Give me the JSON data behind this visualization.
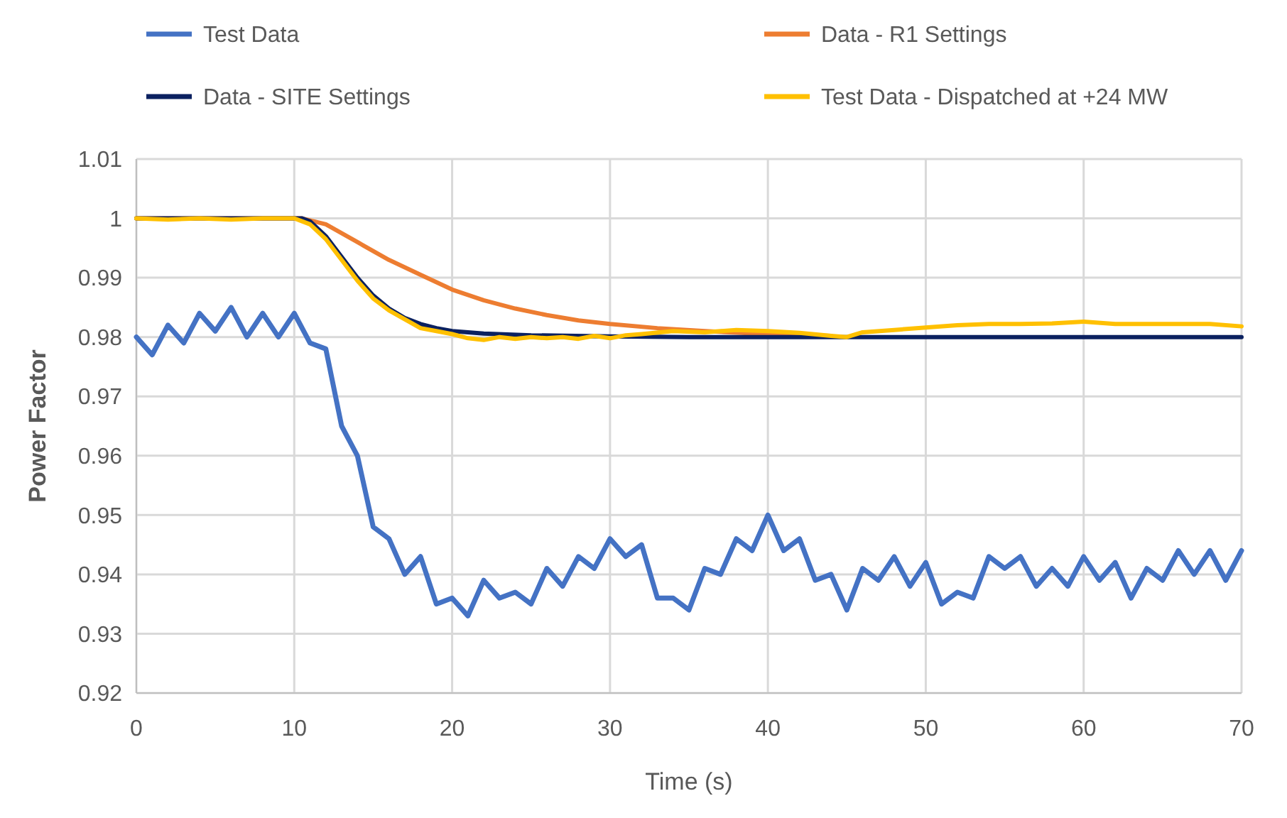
{
  "chart_data": {
    "type": "line",
    "xlabel": "Time (s)",
    "ylabel": "Power Factor",
    "xlim": [
      0,
      70
    ],
    "xticks": [
      0,
      10,
      20,
      30,
      40,
      50,
      60,
      70
    ],
    "ylim": [
      0.92,
      1.01
    ],
    "yticks": [
      0.92,
      0.93,
      0.94,
      0.95,
      0.96,
      0.97,
      0.98,
      0.99,
      1,
      1.01
    ],
    "grid": true,
    "legend": "top",
    "marker": "none",
    "line_style": "solid",
    "series": [
      {
        "name": "Test Data",
        "color": "#4472c4",
        "x": [
          0,
          1,
          2,
          3,
          4,
          5,
          6,
          7,
          8,
          9,
          10,
          11,
          12,
          13,
          14,
          15,
          16,
          17,
          18,
          19,
          20,
          21,
          22,
          23,
          24,
          25,
          26,
          27,
          28,
          29,
          30,
          31,
          32,
          33,
          34,
          35,
          36,
          37,
          38,
          39,
          40,
          41,
          42,
          43,
          44,
          45,
          46,
          47,
          48,
          49,
          50,
          51,
          52,
          53,
          54,
          55,
          56,
          57,
          58,
          59,
          60,
          61,
          62,
          63,
          64,
          65,
          66,
          67,
          68,
          69,
          70
        ],
        "values": [
          0.98,
          0.977,
          0.982,
          0.979,
          0.984,
          0.981,
          0.985,
          0.98,
          0.984,
          0.98,
          0.984,
          0.979,
          0.978,
          0.965,
          0.96,
          0.948,
          0.946,
          0.94,
          0.943,
          0.935,
          0.936,
          0.933,
          0.939,
          0.936,
          0.937,
          0.935,
          0.941,
          0.938,
          0.943,
          0.941,
          0.946,
          0.943,
          0.945,
          0.936,
          0.936,
          0.934,
          0.941,
          0.94,
          0.946,
          0.944,
          0.95,
          0.944,
          0.946,
          0.939,
          0.94,
          0.934,
          0.941,
          0.939,
          0.943,
          0.938,
          0.942,
          0.935,
          0.937,
          0.936,
          0.943,
          0.941,
          0.943,
          0.938,
          0.941,
          0.938,
          0.943,
          0.939,
          0.942,
          0.936,
          0.941,
          0.939,
          0.944,
          0.94,
          0.944,
          0.939,
          0.944
        ]
      },
      {
        "name": "Data - R1 Settings",
        "color": "#ed7d31",
        "x": [
          0,
          10.5,
          12,
          14,
          16,
          18,
          20,
          22,
          24,
          26,
          28,
          30,
          33,
          36,
          40,
          44
        ],
        "values": [
          1,
          1,
          0.999,
          0.996,
          0.993,
          0.9905,
          0.988,
          0.9862,
          0.9848,
          0.9837,
          0.9828,
          0.9822,
          0.9815,
          0.981,
          0.9805,
          0.9802
        ]
      },
      {
        "name": "Data - SITE Settings",
        "color": "#0b2160",
        "x": [
          0,
          10.5,
          11,
          12,
          13,
          14,
          15,
          16,
          17,
          18,
          19,
          20,
          22,
          25,
          30,
          35,
          70
        ],
        "values": [
          1,
          1,
          0.9995,
          0.997,
          0.9935,
          0.99,
          0.987,
          0.9848,
          0.9832,
          0.9822,
          0.9815,
          0.981,
          0.9806,
          0.9803,
          0.9801,
          0.98,
          0.98
        ]
      },
      {
        "name": "Test Data - Dispatched at +24 MW",
        "color": "#ffc000",
        "x": [
          0,
          2,
          4,
          6,
          8,
          10,
          11,
          12,
          13,
          14,
          15,
          16,
          17,
          18,
          19,
          20,
          21,
          22,
          23,
          24,
          25,
          26,
          27,
          28,
          29,
          30,
          31,
          32,
          34,
          36,
          38,
          40,
          42,
          44,
          45,
          46,
          48,
          50,
          52,
          54,
          56,
          58,
          60,
          62,
          64,
          66,
          68,
          70
        ],
        "values": [
          1,
          0.9998,
          1,
          0.9998,
          1,
          1,
          0.999,
          0.9965,
          0.993,
          0.9895,
          0.9865,
          0.9845,
          0.983,
          0.9815,
          0.981,
          0.9805,
          0.9798,
          0.9795,
          0.98,
          0.9797,
          0.98,
          0.9798,
          0.98,
          0.9797,
          0.9802,
          0.9798,
          0.9803,
          0.9805,
          0.981,
          0.9808,
          0.9812,
          0.981,
          0.9807,
          0.9802,
          0.98,
          0.9808,
          0.9812,
          0.9816,
          0.982,
          0.9822,
          0.9822,
          0.9823,
          0.9826,
          0.9822,
          0.9822,
          0.9822,
          0.9822,
          0.9818
        ]
      }
    ]
  }
}
